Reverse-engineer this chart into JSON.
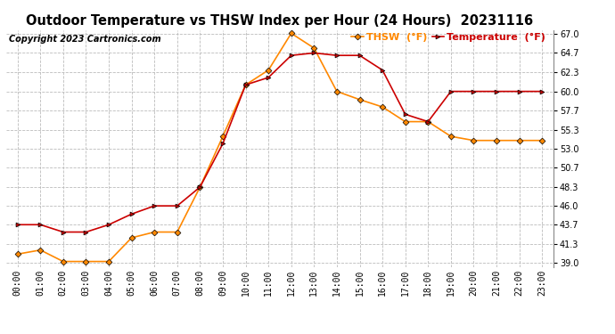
{
  "title": "Outdoor Temperature vs THSW Index per Hour (24 Hours)  20231116",
  "copyright": "Copyright 2023 Cartronics.com",
  "hours": [
    "00:00",
    "01:00",
    "02:00",
    "03:00",
    "04:00",
    "05:00",
    "06:00",
    "07:00",
    "08:00",
    "09:00",
    "10:00",
    "11:00",
    "12:00",
    "13:00",
    "14:00",
    "15:00",
    "16:00",
    "17:00",
    "18:00",
    "19:00",
    "20:00",
    "21:00",
    "22:00",
    "23:00"
  ],
  "temperature": [
    43.7,
    43.7,
    42.8,
    42.8,
    43.7,
    45.0,
    46.0,
    46.0,
    48.3,
    53.6,
    60.8,
    61.7,
    64.4,
    64.7,
    64.4,
    64.4,
    62.6,
    57.2,
    56.3,
    60.0,
    60.0,
    60.0,
    60.0,
    60.0
  ],
  "thsw": [
    40.1,
    40.6,
    39.2,
    39.2,
    39.2,
    42.1,
    42.8,
    42.8,
    48.3,
    54.5,
    60.8,
    62.6,
    67.1,
    65.3,
    60.0,
    59.0,
    58.1,
    56.3,
    56.3,
    54.5,
    54.0,
    54.0,
    54.0,
    54.0
  ],
  "temp_color": "#cc0000",
  "thsw_color": "#ff8800",
  "marker_color": "#000000",
  "ylim_min": 39.0,
  "ylim_max": 67.0,
  "yticks": [
    39.0,
    41.3,
    43.7,
    46.0,
    48.3,
    50.7,
    53.0,
    55.3,
    57.7,
    60.0,
    62.3,
    64.7,
    67.0
  ],
  "background_color": "#ffffff",
  "grid_color": "#bbbbbb",
  "title_fontsize": 10.5,
  "copyright_fontsize": 7,
  "tick_fontsize": 7,
  "legend_thsw": "THSW  (°F)",
  "legend_temp": "Temperature  (°F)"
}
